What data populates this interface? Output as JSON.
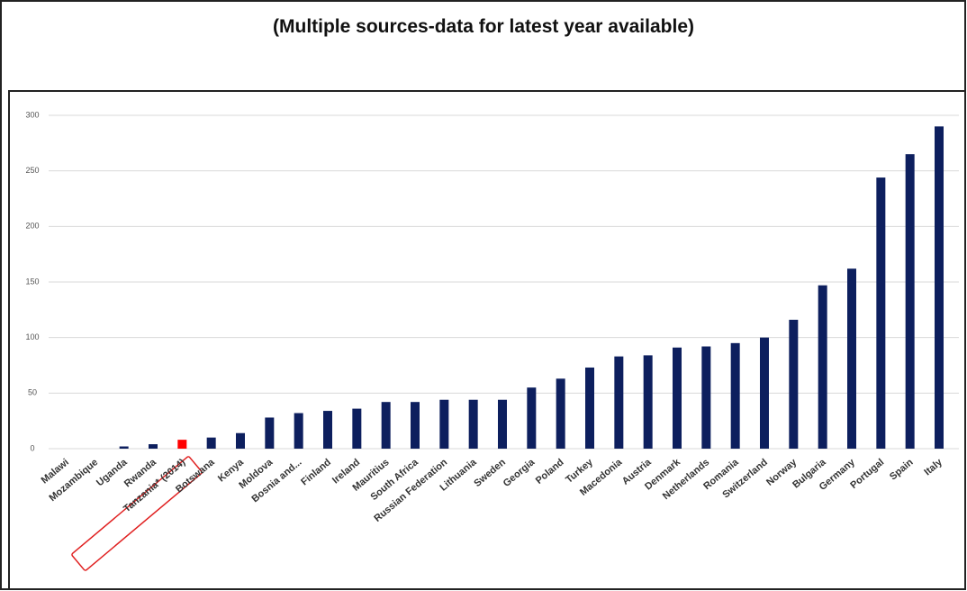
{
  "chart_data": {
    "type": "bar",
    "title": "(Multiple sources-data for latest year available)",
    "categories": [
      "Malawi",
      "Mozambique",
      "Uganda",
      "Rwanda",
      "Tanzania* (2014)",
      "Botswana",
      "Kenya",
      "Moldova",
      "Bosnia and...",
      "Finland",
      "Ireland",
      "Mauritius",
      "South Africa",
      "Russian Federation",
      "Lithuania",
      "Sweden",
      "Georgia",
      "Poland",
      "Turkey",
      "Macedonia",
      "Austria",
      "Denmark",
      "Netherlands",
      "Romania",
      "Switzerland",
      "Norway",
      "Bulgaria",
      "Germany",
      "Portugal",
      "Spain",
      "Italy"
    ],
    "values": [
      0,
      0,
      2,
      4,
      8,
      10,
      14,
      28,
      32,
      34,
      36,
      42,
      42,
      44,
      44,
      44,
      55,
      63,
      73,
      83,
      84,
      91,
      92,
      95,
      100,
      116,
      147,
      162,
      244,
      265,
      290
    ],
    "colors": [
      "#0d1f5e",
      "#0d1f5e",
      "#0d1f5e",
      "#0d1f5e",
      "#ff0000",
      "#0d1f5e",
      "#0d1f5e",
      "#0d1f5e",
      "#0d1f5e",
      "#0d1f5e",
      "#0d1f5e",
      "#0d1f5e",
      "#0d1f5e",
      "#0d1f5e",
      "#0d1f5e",
      "#0d1f5e",
      "#0d1f5e",
      "#0d1f5e",
      "#0d1f5e",
      "#0d1f5e",
      "#0d1f5e",
      "#0d1f5e",
      "#0d1f5e",
      "#0d1f5e",
      "#0d1f5e",
      "#0d1f5e",
      "#0d1f5e",
      "#0d1f5e",
      "#0d1f5e",
      "#0d1f5e",
      "#0d1f5e"
    ],
    "ylim": [
      0,
      300
    ],
    "yticks": [
      0,
      50,
      100,
      150,
      200,
      250,
      300
    ],
    "grid": true
  }
}
